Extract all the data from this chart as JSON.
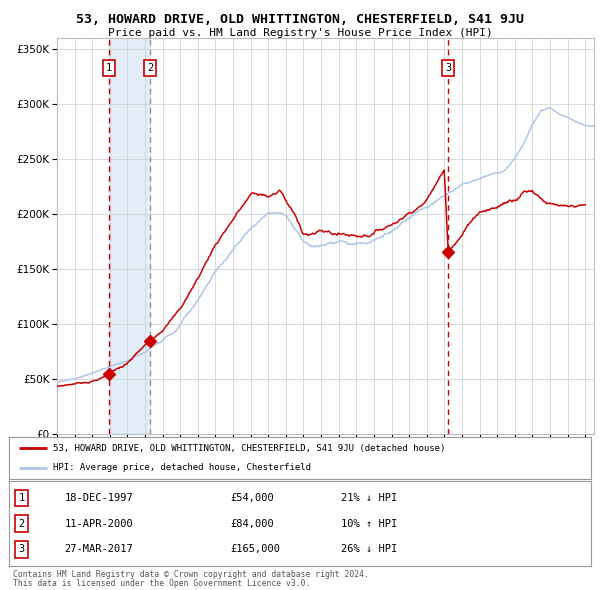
{
  "title": "53, HOWARD DRIVE, OLD WHITTINGTON, CHESTERFIELD, S41 9JU",
  "subtitle": "Price paid vs. HM Land Registry's House Price Index (HPI)",
  "legend_line1": "53, HOWARD DRIVE, OLD WHITTINGTON, CHESTERFIELD, S41 9JU (detached house)",
  "legend_line2": "HPI: Average price, detached house, Chesterfield",
  "footnote1": "Contains HM Land Registry data © Crown copyright and database right 2024.",
  "footnote2": "This data is licensed under the Open Government Licence v3.0.",
  "transactions": [
    {
      "label": "1",
      "date": "18-DEC-1997",
      "price": 54000,
      "pct": "21%",
      "dir": "↓",
      "x_year": 1997.96
    },
    {
      "label": "2",
      "date": "11-APR-2000",
      "price": 84000,
      "pct": "10%",
      "dir": "↑",
      "x_year": 2000.28
    },
    {
      "label": "3",
      "date": "27-MAR-2017",
      "price": 165000,
      "pct": "26%",
      "dir": "↓",
      "x_year": 2017.23
    }
  ],
  "hpi_color": "#aec6e8",
  "price_color": "#cc0000",
  "dot_color": "#cc0000",
  "shade_color": "#ddeaf7",
  "grid_color": "#cccccc",
  "background_color": "#ffffff",
  "ylim": [
    0,
    360000
  ],
  "xlim_start": 1995,
  "xlim_end": 2025.5,
  "hpi_key_years": [
    1995,
    1996,
    1997,
    1998,
    1999,
    2000,
    2001,
    2002,
    2003,
    2004,
    2005,
    2006,
    2007,
    2007.7,
    2008,
    2009,
    2009.5,
    2010,
    2011,
    2012,
    2013,
    2014,
    2015,
    2016,
    2017,
    2018,
    2019,
    2020,
    2020.5,
    2021,
    2021.5,
    2022,
    2022.5,
    2023,
    2023.5,
    2024,
    2024.5,
    2025
  ],
  "hpi_key_vals": [
    47000,
    50000,
    55000,
    60000,
    65000,
    72000,
    82000,
    97000,
    117000,
    143000,
    163000,
    183000,
    198000,
    202000,
    197000,
    172000,
    168000,
    172000,
    171000,
    170000,
    173000,
    181000,
    191000,
    202000,
    212000,
    222000,
    229000,
    234000,
    238000,
    248000,
    262000,
    280000,
    292000,
    295000,
    290000,
    287000,
    283000,
    280000
  ],
  "price_key_years_seg1": [
    1995,
    1996,
    1997,
    1997.96
  ],
  "price_key_vals_seg1": [
    43000,
    46000,
    49000,
    54000
  ],
  "price_key_years_seg2": [
    1997.96,
    1998,
    1999,
    2000,
    2000.28
  ],
  "price_key_vals_seg2": [
    54000,
    57000,
    63000,
    79000,
    84000
  ],
  "price_key_years_seg3": [
    2000.28,
    2001,
    2002,
    2003,
    2004,
    2005,
    2006,
    2007,
    2007.7,
    2008,
    2009,
    2010,
    2011,
    2012,
    2013,
    2014,
    2015,
    2016,
    2017,
    2017.23
  ],
  "price_key_vals_seg3": [
    84000,
    96000,
    115000,
    143000,
    175000,
    200000,
    222000,
    220000,
    225000,
    215000,
    187000,
    188000,
    186000,
    185000,
    189000,
    197000,
    208000,
    220000,
    246000,
    165000
  ],
  "price_key_years_seg4": [
    2017.23,
    2017.5,
    2018,
    2018.5,
    2019,
    2020,
    2021,
    2021.5,
    2022,
    2023,
    2024,
    2025
  ],
  "price_key_vals_seg4": [
    165000,
    172000,
    182000,
    195000,
    205000,
    210000,
    220000,
    228000,
    230000,
    218000,
    210000,
    210000
  ]
}
